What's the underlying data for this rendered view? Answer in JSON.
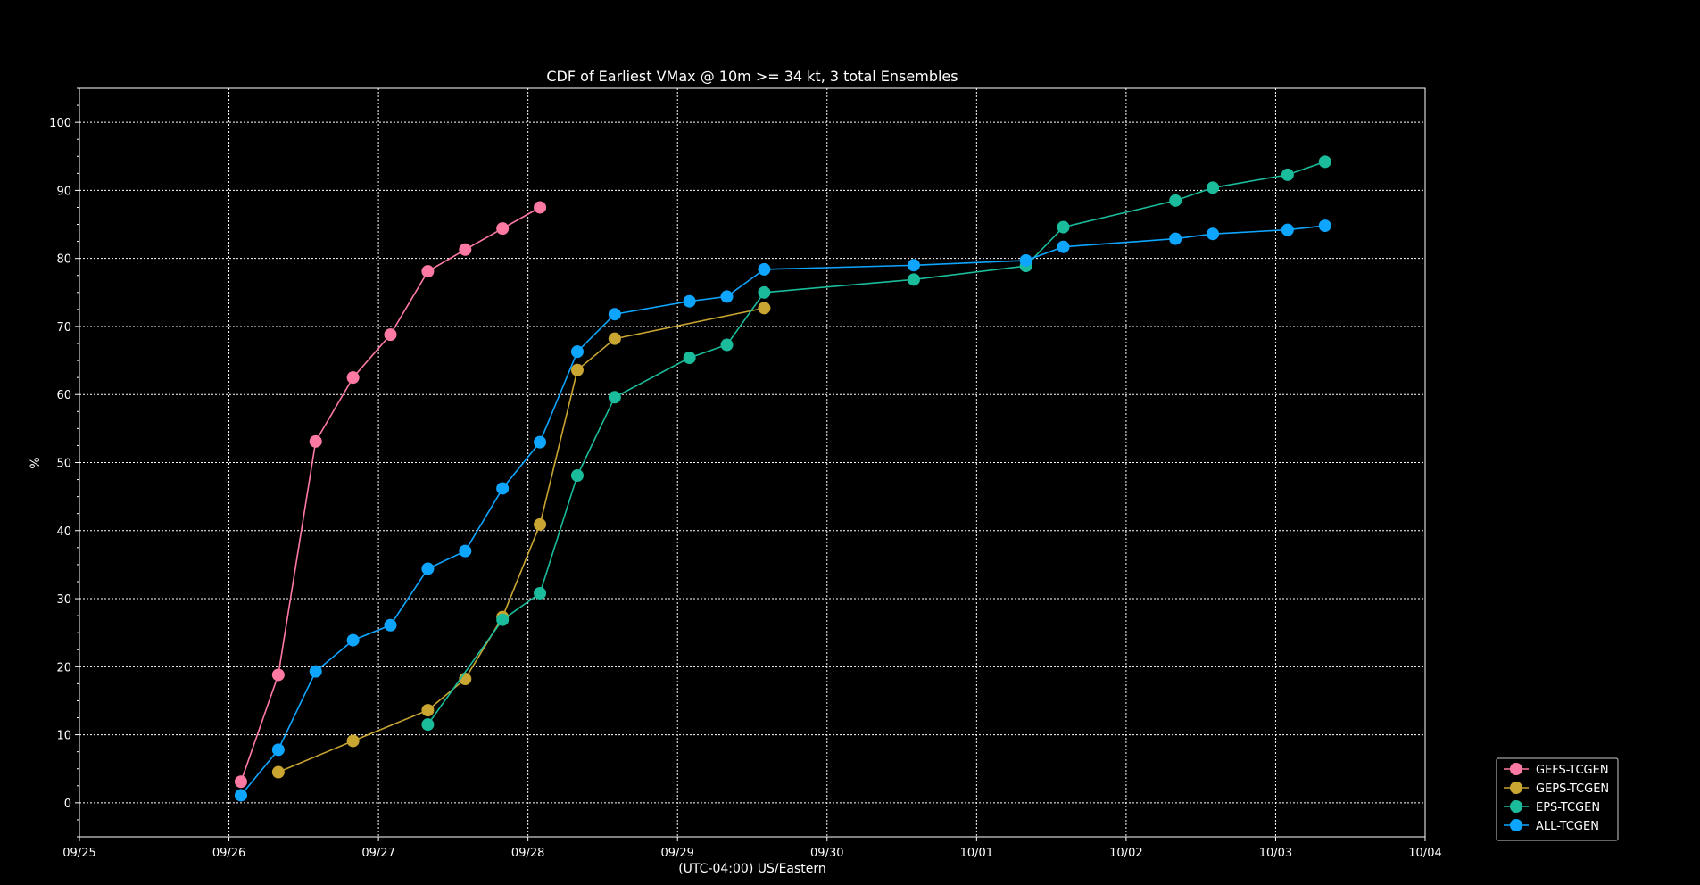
{
  "chart_data": {
    "type": "line",
    "title": "CDF of Earliest VMax @ 10m >= 34 kt, 3 total Ensembles",
    "xlabel": "(UTC-04:00) US/Eastern",
    "ylabel": "%",
    "xlim": [
      0,
      9
    ],
    "ylim": [
      -5,
      105
    ],
    "x_tick_labels": [
      "09/25",
      "09/26",
      "09/27",
      "09/28",
      "09/29",
      "09/30",
      "10/01",
      "10/02",
      "10/03",
      "10/04"
    ],
    "y_ticks": [
      0,
      10,
      20,
      30,
      40,
      50,
      60,
      70,
      80,
      90,
      100
    ],
    "grid": true,
    "legend_position": "lower-right-outside",
    "series": [
      {
        "name": "GEFS-TCGEN",
        "color": "#ff7aa2",
        "x": [
          1.08,
          1.33,
          1.58,
          1.83,
          2.08,
          2.33,
          2.58,
          2.83,
          3.08
        ],
        "y": [
          3.1,
          18.8,
          53.1,
          62.5,
          68.8,
          78.1,
          81.3,
          84.4,
          87.5
        ]
      },
      {
        "name": "GEPS-TCGEN",
        "color": "#c9a532",
        "x": [
          1.33,
          1.83,
          2.33,
          2.58,
          2.83,
          3.08,
          3.33,
          3.58,
          4.58
        ],
        "y": [
          4.5,
          9.1,
          13.6,
          18.2,
          27.3,
          40.9,
          63.6,
          68.2,
          72.7
        ]
      },
      {
        "name": "EPS-TCGEN",
        "color": "#1abc9c",
        "x": [
          2.33,
          2.83,
          3.08,
          3.33,
          3.58,
          4.08,
          4.33,
          4.58,
          5.58,
          6.33,
          6.58,
          7.33,
          7.58,
          8.08,
          8.33
        ],
        "y": [
          11.5,
          26.9,
          30.8,
          48.1,
          59.6,
          65.4,
          67.3,
          75.0,
          76.9,
          78.9,
          84.6,
          88.5,
          90.4,
          92.3,
          94.2
        ]
      },
      {
        "name": "ALL-TCGEN",
        "color": "#0ea5ff",
        "x": [
          1.08,
          1.33,
          1.58,
          1.83,
          2.08,
          2.33,
          2.58,
          2.83,
          3.08,
          3.33,
          3.58,
          4.08,
          4.33,
          4.58,
          5.58,
          6.33,
          6.58,
          7.33,
          7.58,
          8.08,
          8.33
        ],
        "y": [
          1.1,
          7.8,
          19.3,
          23.9,
          26.1,
          34.4,
          37.0,
          46.2,
          53.0,
          66.3,
          71.8,
          73.7,
          74.4,
          78.4,
          79.0,
          79.7,
          81.7,
          82.9,
          83.6,
          84.2,
          84.8
        ]
      }
    ]
  }
}
